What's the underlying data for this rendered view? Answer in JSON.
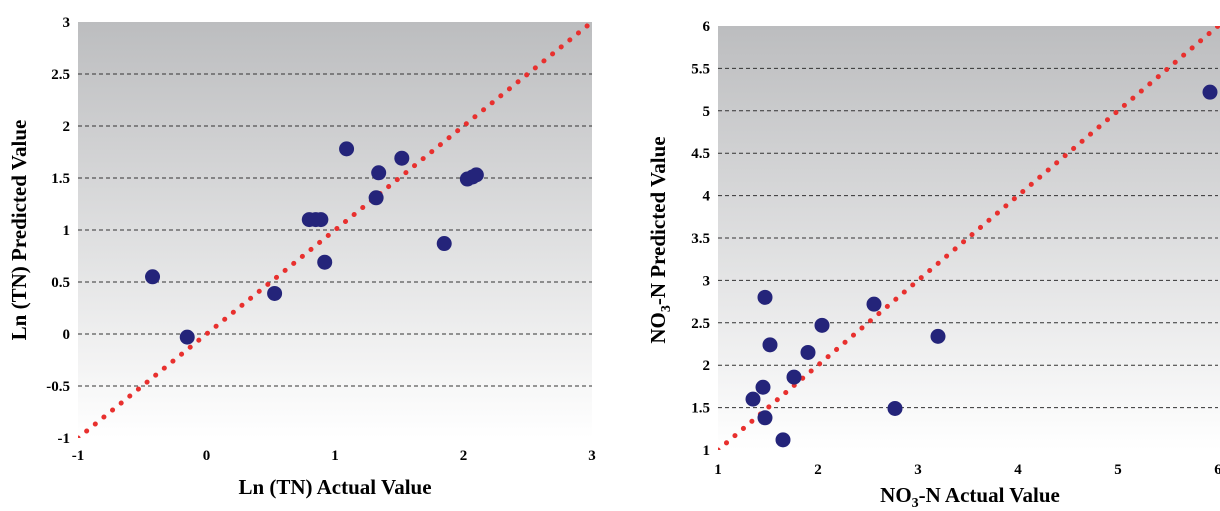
{
  "chart_data": [
    {
      "type": "scatter",
      "title": "",
      "xlabel": "Ln (TN) Actual Value",
      "ylabel": "Ln (TN) Predicted Value",
      "xlim": [
        -1,
        3
      ],
      "ylim": [
        -1,
        3
      ],
      "xticks": [
        "-1",
        "0",
        "1",
        "2",
        "3"
      ],
      "yticks": [
        "-1",
        "-0.5",
        "0",
        "0.5",
        "1",
        "1.5",
        "2",
        "2.5",
        "3"
      ],
      "grid": "horizontal-dashed",
      "reference_line": [
        [
          -1,
          -1
        ],
        [
          3,
          3
        ]
      ],
      "colors": {
        "points": "#24247a",
        "reference_line": "#e8302e",
        "plot_top": "#bcbdbf",
        "plot_bottom": "#ffffff"
      },
      "points": [
        {
          "x": -0.42,
          "y": 0.55
        },
        {
          "x": -0.15,
          "y": -0.03
        },
        {
          "x": 0.53,
          "y": 0.39
        },
        {
          "x": 0.8,
          "y": 1.1
        },
        {
          "x": 0.85,
          "y": 1.1
        },
        {
          "x": 0.89,
          "y": 1.1
        },
        {
          "x": 0.92,
          "y": 0.69
        },
        {
          "x": 1.09,
          "y": 1.78
        },
        {
          "x": 1.32,
          "y": 1.31
        },
        {
          "x": 1.34,
          "y": 1.55
        },
        {
          "x": 1.52,
          "y": 1.69
        },
        {
          "x": 1.85,
          "y": 0.87
        },
        {
          "x": 2.03,
          "y": 1.49
        },
        {
          "x": 2.07,
          "y": 1.51
        },
        {
          "x": 2.1,
          "y": 1.53
        }
      ]
    },
    {
      "type": "scatter",
      "title": "",
      "xlabel": "NO3-N Actual Value",
      "xlabel_parts": [
        "NO",
        "3",
        "-N Actual Value"
      ],
      "ylabel": "NO3-N Predicted Value",
      "ylabel_parts": [
        "NO",
        "3",
        "-N Predicted Value"
      ],
      "xlim": [
        1,
        6
      ],
      "ylim": [
        1,
        6
      ],
      "xticks": [
        "1",
        "2",
        "3",
        "4",
        "5",
        "6"
      ],
      "yticks": [
        "1",
        "1.5",
        "2",
        "2.5",
        "3",
        "3.5",
        "4",
        "4.5",
        "5",
        "5.5",
        "6"
      ],
      "grid": "horizontal-dashed",
      "reference_line": [
        [
          1,
          1
        ],
        [
          6,
          6
        ]
      ],
      "colors": {
        "points": "#24247a",
        "reference_line": "#e8302e",
        "plot_top": "#bcbdbf",
        "plot_bottom": "#ffffff"
      },
      "points": [
        {
          "x": 1.35,
          "y": 1.6
        },
        {
          "x": 1.45,
          "y": 1.74
        },
        {
          "x": 1.47,
          "y": 1.38
        },
        {
          "x": 1.47,
          "y": 2.8
        },
        {
          "x": 1.52,
          "y": 2.24
        },
        {
          "x": 1.65,
          "y": 1.12
        },
        {
          "x": 1.76,
          "y": 1.86
        },
        {
          "x": 1.9,
          "y": 2.15
        },
        {
          "x": 2.04,
          "y": 2.47
        },
        {
          "x": 2.56,
          "y": 2.72
        },
        {
          "x": 2.77,
          "y": 1.49
        },
        {
          "x": 3.2,
          "y": 2.34
        },
        {
          "x": 5.92,
          "y": 5.22
        }
      ]
    }
  ]
}
